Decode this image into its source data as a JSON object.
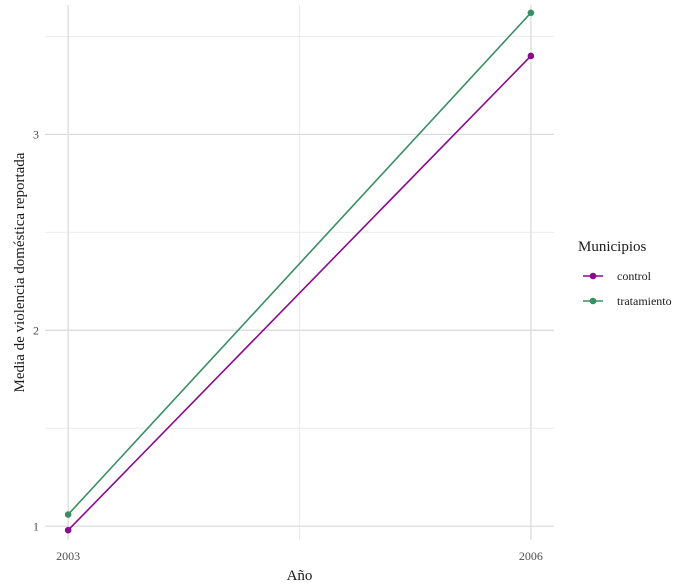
{
  "chart_data": {
    "type": "line",
    "title": "",
    "xlabel": "Año",
    "ylabel": "Media de violencia doméstica reportada",
    "x": [
      2003,
      2006
    ],
    "xticks": [
      "2003",
      "2006"
    ],
    "yticks": [
      1,
      2,
      3
    ],
    "xlim": [
      2002.85,
      2006.15
    ],
    "ylim": [
      0.93,
      3.66
    ],
    "grid": true,
    "legend": {
      "title": "Municipios",
      "position": "right"
    },
    "series": [
      {
        "name": "control",
        "color": "#8B0A8E",
        "values": [
          0.98,
          3.4
        ]
      },
      {
        "name": "tratamiento",
        "color": "#3A8F62",
        "values": [
          1.06,
          3.62
        ]
      }
    ]
  }
}
